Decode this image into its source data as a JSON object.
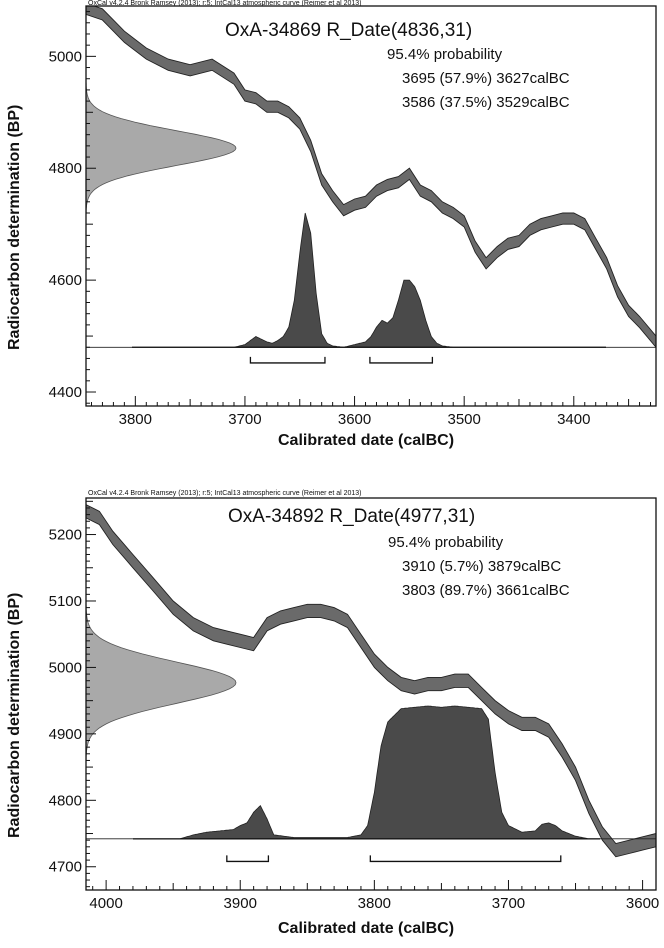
{
  "chart_data": [
    {
      "type": "area",
      "citation": "OxCal v4.2.4 Bronk Ramsey (2013); r:5; IntCal13 atmospheric curve (Reimer et al 2013)",
      "title": "OxA-34869 R_Date(4836,31)",
      "probability_label": "95.4% probability",
      "ranges_text": [
        "3695 (57.9%) 3627calBC",
        "3586 (37.5%) 3529calBC"
      ],
      "ranges": [
        {
          "from": 3695,
          "to": 3627,
          "percent": 57.9
        },
        {
          "from": 3586,
          "to": 3529,
          "percent": 37.5
        }
      ],
      "xlabel": "Calibrated date (calBC)",
      "ylabel": "Radiocarbon determination (BP)",
      "xlim": [
        3845,
        3325
      ],
      "ylim": [
        4375,
        5090
      ],
      "x_ticks": [
        3800,
        3700,
        3600,
        3500,
        3400
      ],
      "y_ticks": [
        4400,
        4600,
        4800,
        5000
      ],
      "radiocarbon_date": {
        "mean": 4836,
        "sd": 31
      },
      "calibration_curve": {
        "x": [
          3845,
          3830,
          3810,
          3790,
          3770,
          3750,
          3730,
          3710,
          3700,
          3690,
          3680,
          3670,
          3660,
          3650,
          3640,
          3630,
          3620,
          3610,
          3600,
          3590,
          3580,
          3570,
          3560,
          3550,
          3540,
          3530,
          3520,
          3510,
          3500,
          3490,
          3480,
          3470,
          3460,
          3450,
          3440,
          3430,
          3420,
          3410,
          3400,
          3390,
          3380,
          3370,
          3360,
          3350,
          3340,
          3325
        ],
        "y": [
          5085,
          5075,
          5035,
          5005,
          4985,
          4975,
          4985,
          4960,
          4930,
          4925,
          4910,
          4910,
          4900,
          4880,
          4840,
          4780,
          4750,
          4725,
          4735,
          4740,
          4760,
          4770,
          4775,
          4790,
          4760,
          4750,
          4730,
          4720,
          4705,
          4660,
          4630,
          4650,
          4665,
          4670,
          4690,
          4700,
          4705,
          4710,
          4710,
          4700,
          4665,
          4630,
          4580,
          4545,
          4525,
          4490
        ],
        "band": 10
      },
      "probability_distribution": {
        "baseline_y": 4480,
        "peak_height": 240,
        "x": [
          3845,
          3710,
          3700,
          3695,
          3690,
          3685,
          3680,
          3675,
          3670,
          3665,
          3660,
          3655,
          3650,
          3645,
          3640,
          3635,
          3630,
          3625,
          3620,
          3610,
          3600,
          3590,
          3585,
          3580,
          3575,
          3570,
          3565,
          3560,
          3555,
          3550,
          3545,
          3540,
          3535,
          3530,
          3525,
          3520,
          3510,
          3325
        ],
        "p": [
          0,
          0,
          0.02,
          0.05,
          0.08,
          0.06,
          0.04,
          0.03,
          0.05,
          0.08,
          0.15,
          0.35,
          0.7,
          1.0,
          0.85,
          0.4,
          0.1,
          0.03,
          0.01,
          0,
          0.02,
          0.04,
          0.08,
          0.15,
          0.2,
          0.18,
          0.22,
          0.35,
          0.5,
          0.5,
          0.45,
          0.35,
          0.2,
          0.08,
          0.03,
          0.01,
          0,
          0
        ]
      },
      "range_bars_y": 4452
    },
    {
      "type": "area",
      "citation": "OxCal v4.2.4 Bronk Ramsey (2013); r:5; IntCal13 atmospheric curve (Reimer et al 2013)",
      "title": "OxA-34892 R_Date(4977,31)",
      "probability_label": "95.4% probability",
      "ranges_text": [
        "3910 (5.7%) 3879calBC",
        "3803 (89.7%) 3661calBC"
      ],
      "ranges": [
        {
          "from": 3910,
          "to": 3879,
          "percent": 5.7
        },
        {
          "from": 3803,
          "to": 3661,
          "percent": 89.7
        }
      ],
      "xlabel": "Calibrated date (calBC)",
      "ylabel": "Radiocarbon determination (BP)",
      "xlim": [
        4015,
        3590
      ],
      "ylim": [
        4665,
        5255
      ],
      "x_ticks": [
        4000,
        3900,
        3800,
        3700,
        3600
      ],
      "y_ticks": [
        4700,
        4800,
        4900,
        5000,
        5100,
        5200
      ],
      "radiocarbon_date": {
        "mean": 4977,
        "sd": 31
      },
      "calibration_curve": {
        "x": [
          4015,
          4005,
          3995,
          3980,
          3965,
          3950,
          3935,
          3920,
          3910,
          3900,
          3890,
          3880,
          3870,
          3860,
          3850,
          3840,
          3830,
          3820,
          3810,
          3800,
          3790,
          3780,
          3770,
          3760,
          3750,
          3740,
          3730,
          3720,
          3710,
          3700,
          3690,
          3680,
          3670,
          3660,
          3650,
          3640,
          3630,
          3620,
          3610,
          3600,
          3590
        ],
        "y": [
          5235,
          5225,
          5195,
          5160,
          5125,
          5090,
          5065,
          5050,
          5045,
          5040,
          5035,
          5065,
          5075,
          5080,
          5085,
          5085,
          5080,
          5070,
          5040,
          5010,
          4990,
          4975,
          4970,
          4975,
          4975,
          4980,
          4980,
          4960,
          4940,
          4925,
          4915,
          4915,
          4905,
          4875,
          4840,
          4790,
          4750,
          4725,
          4730,
          4735,
          4740
        ],
        "band": 10
      },
      "probability_distribution": {
        "baseline_y": 4742,
        "peak_height": 200,
        "x": [
          4015,
          3945,
          3935,
          3925,
          3915,
          3905,
          3900,
          3895,
          3890,
          3885,
          3880,
          3875,
          3860,
          3840,
          3820,
          3810,
          3805,
          3800,
          3795,
          3790,
          3780,
          3770,
          3760,
          3750,
          3740,
          3730,
          3720,
          3715,
          3710,
          3705,
          3700,
          3690,
          3680,
          3675,
          3670,
          3665,
          3660,
          3650,
          3640,
          3590
        ],
        "p": [
          0,
          0,
          0.03,
          0.05,
          0.06,
          0.07,
          0.1,
          0.12,
          0.2,
          0.25,
          0.15,
          0.03,
          0.01,
          0.01,
          0.01,
          0.03,
          0.1,
          0.35,
          0.7,
          0.88,
          0.98,
          0.99,
          1.0,
          0.99,
          1.0,
          0.99,
          0.98,
          0.9,
          0.5,
          0.2,
          0.1,
          0.05,
          0.06,
          0.11,
          0.12,
          0.1,
          0.06,
          0.02,
          0,
          0
        ]
      },
      "range_bars_y": 4708
    }
  ]
}
